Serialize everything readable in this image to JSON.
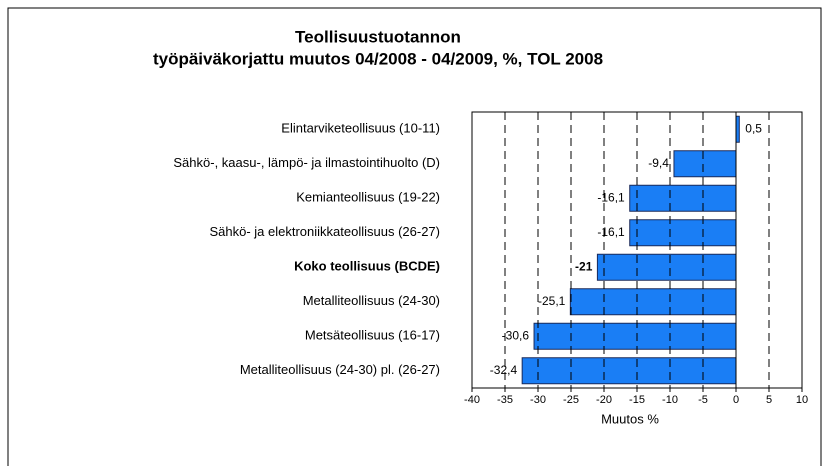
{
  "chart_data": {
    "type": "barh",
    "title": "Teollisuustuotannon",
    "subtitle": "työpäiväkorjattu muutos 04/2008 - 04/2009,  %,  TOL 2008",
    "categories": [
      "Elintarviketeollisuus (10-11)",
      "Sähkö-, kaasu-, lämpö- ja ilmastointihuolto (D)",
      "Kemianteollisuus (19-22)",
      "Sähkö- ja elektroniikkateollisuus (26-27)",
      "Koko teollisuus (BCDE)",
      "Metalliteollisuus (24-30)",
      "Metsäteollisuus (16-17)",
      "Metalliteollisuus (24-30) pl. (26-27)"
    ],
    "values": [
      0.5,
      -9.4,
      -16.1,
      -16.1,
      -21,
      -25.1,
      -30.6,
      -32.4
    ],
    "value_labels": [
      "0,5",
      "-9,4",
      "-16,1",
      "-16,1",
      "-21",
      "-25,1",
      "-30,6",
      "-32,4"
    ],
    "bold_categories": [
      4
    ],
    "color": "#1a7ef5",
    "xlabel": "Muutos %",
    "xlim": [
      -40,
      10
    ],
    "xticks": [
      -40,
      -35,
      -30,
      -25,
      -20,
      -15,
      -10,
      -5,
      0,
      5,
      10
    ],
    "grid": true
  }
}
